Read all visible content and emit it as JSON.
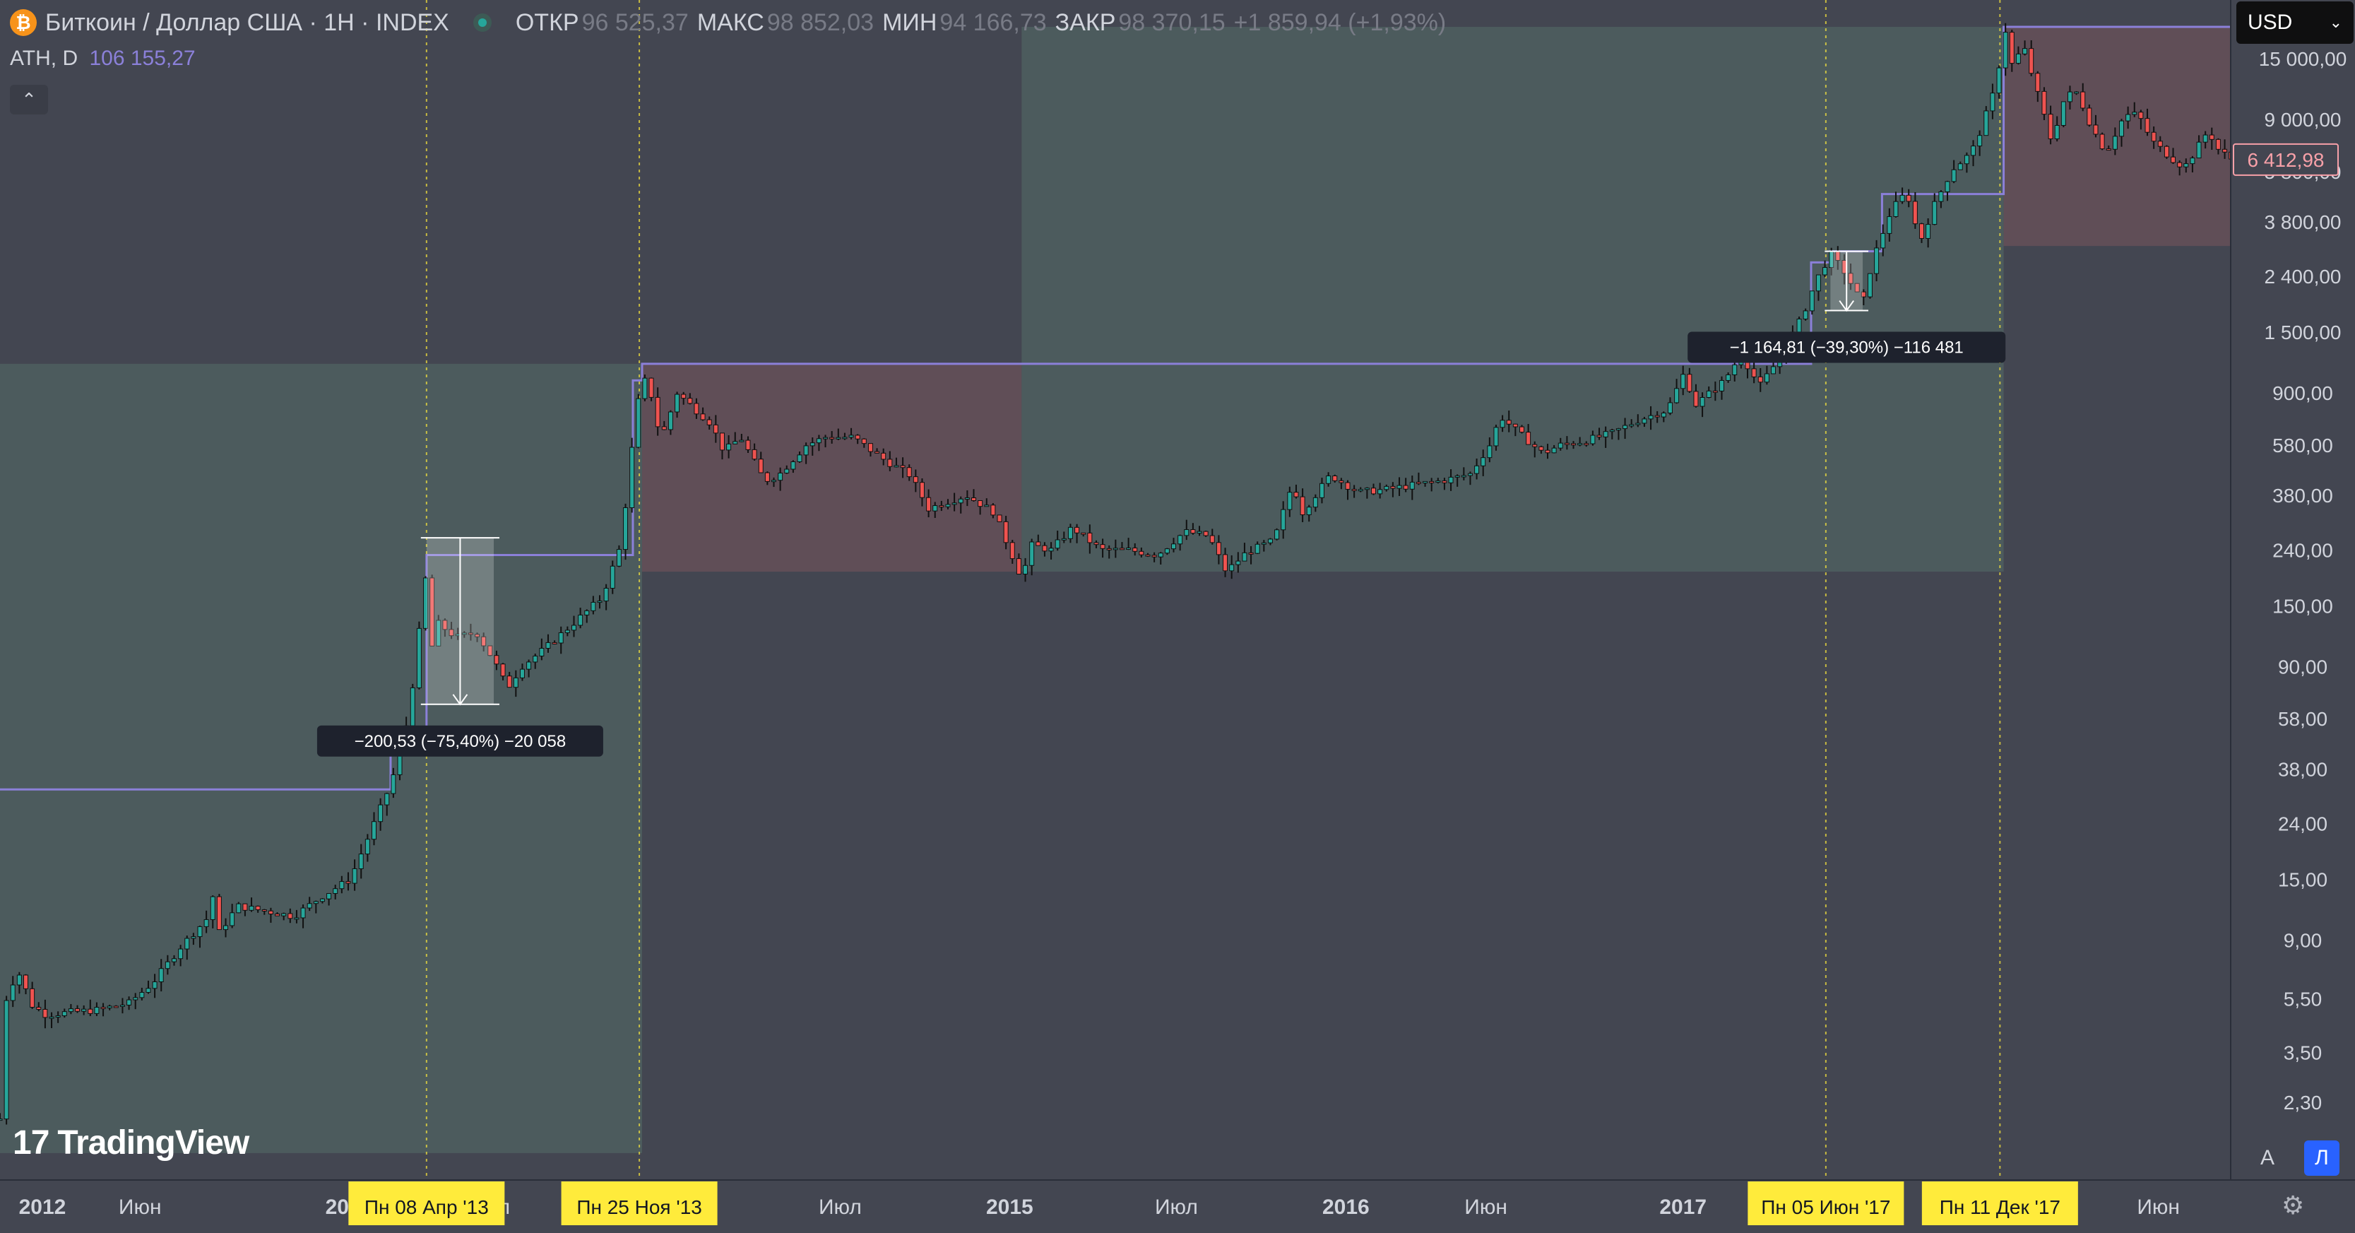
{
  "header": {
    "coin_icon": "bitcoin-icon",
    "title": "Биткоин / Доллар США · 1Н · INDEX",
    "open_label": "ОТКР",
    "open": "96 525,37",
    "high_label": "МАКС",
    "high": "98 852,03",
    "low_label": "МИН",
    "low": "94 166,73",
    "close_label": "ЗАКР",
    "close": "98 370,15",
    "change": "+1 859,94 (+1,93%)"
  },
  "indicator": {
    "label": "ATH, D",
    "value": "106 155,27"
  },
  "currency_selector": {
    "value": "USD"
  },
  "branding": {
    "text": "TradingView"
  },
  "scale_controls": {
    "auto_label": "A",
    "log_label": "Л"
  },
  "colors": {
    "background": "#434651",
    "up": "#26a69a",
    "down": "#ef5350",
    "ath_line": "#8b80d9",
    "highlight": "#ffeb3b",
    "price_tag": "#f7a0a8"
  },
  "chart_data": {
    "type": "candlestick",
    "scale": "log",
    "x_ticks": [
      {
        "date": "2012-01-01",
        "label": "2012"
      },
      {
        "date": "2012-06-01",
        "label": "Июн"
      },
      {
        "date": "2013-01-01",
        "label": "20"
      },
      {
        "date": "2013-07-01",
        "label": "л"
      },
      {
        "date": "2014-07-01",
        "label": "Июл"
      },
      {
        "date": "2015-01-01",
        "label": "2015"
      },
      {
        "date": "2015-07-01",
        "label": "Июл"
      },
      {
        "date": "2016-01-01",
        "label": "2016"
      },
      {
        "date": "2016-06-01",
        "label": "Июн"
      },
      {
        "date": "2017-01-01",
        "label": "2017"
      },
      {
        "date": "2018-06-01",
        "label": "Июн"
      }
    ],
    "y_ticks": [
      {
        "value": 15000,
        "label": "15 000,00"
      },
      {
        "value": 9000,
        "label": "9 000,00"
      },
      {
        "value": 5800,
        "label": "5 800,00"
      },
      {
        "value": 3800,
        "label": "3 800,00"
      },
      {
        "value": 2400,
        "label": "2 400,00"
      },
      {
        "value": 1500,
        "label": "1 500,00"
      },
      {
        "value": 900,
        "label": "900,00"
      },
      {
        "value": 580,
        "label": "580,00"
      },
      {
        "value": 380,
        "label": "380,00"
      },
      {
        "value": 240,
        "label": "240,00"
      },
      {
        "value": 150,
        "label": "150,00"
      },
      {
        "value": 90,
        "label": "90,00"
      },
      {
        "value": 58,
        "label": "58,00"
      },
      {
        "value": 38,
        "label": "38,00"
      },
      {
        "value": 24,
        "label": "24,00"
      },
      {
        "value": 15,
        "label": "15,00"
      },
      {
        "value": 9,
        "label": "9,00"
      },
      {
        "value": 5.5,
        "label": "5,50"
      },
      {
        "value": 3.5,
        "label": "3,50"
      },
      {
        "value": 2.3,
        "label": "2,30"
      }
    ],
    "current_price": {
      "value": 6412.98,
      "label": "6 412,98"
    },
    "highlight_dates": [
      {
        "date": "2013-04-08",
        "label": "Пн 08 Апр '13"
      },
      {
        "date": "2013-11-25",
        "label": "Пн 25 Ноя '13"
      },
      {
        "date": "2017-06-05",
        "label": "Пн 05 Июн '17"
      },
      {
        "date": "2017-12-11",
        "label": "Пн 11 Дек '17"
      }
    ],
    "measurements": [
      {
        "label": "−200,53 (−75,40%) −20 058",
        "from": {
          "date": "2013-04-08",
          "value": 266
        },
        "to": {
          "date": "2013-06-20",
          "value": 65.5
        }
      },
      {
        "label": "−1 164,81 (−39,30%) −116 481",
        "from": {
          "date": "2017-06-10",
          "value": 2965
        },
        "to": {
          "date": "2017-07-15",
          "value": 1800
        }
      }
    ],
    "ath_steps": [
      {
        "start": "2012-01-01",
        "end": "2013-02-28",
        "value": 32
      },
      {
        "start": "2013-02-28",
        "end": "2013-04-08",
        "value": 50
      },
      {
        "start": "2013-04-08",
        "end": "2013-11-18",
        "value": 230
      },
      {
        "start": "2013-11-18",
        "end": "2013-11-28",
        "value": 1000
      },
      {
        "start": "2013-11-28",
        "end": "2017-05-20",
        "value": 1150
      },
      {
        "start": "2017-05-20",
        "end": "2017-06-10",
        "value": 2700
      },
      {
        "start": "2017-06-10",
        "end": "2017-08-05",
        "value": 2965
      },
      {
        "start": "2017-08-05",
        "end": "2017-12-15",
        "value": 4800
      },
      {
        "start": "2017-12-15",
        "end": "2018-08-20",
        "value": 19600
      }
    ],
    "zones": [
      {
        "from": "2012-01-01",
        "to": "2013-11-28",
        "low": 1.5,
        "high": 1150,
        "kind": "bull"
      },
      {
        "from": "2013-11-28",
        "to": "2015-01-14",
        "low": 200,
        "high": 1150,
        "kind": "bear"
      },
      {
        "from": "2015-01-14",
        "to": "2017-12-15",
        "low": 200,
        "high": 19600,
        "kind": "bull"
      },
      {
        "from": "2017-12-15",
        "to": "2018-08-20",
        "low": 3100,
        "high": 19600,
        "kind": "bear"
      }
    ],
    "price_path": [
      [
        "2012-01-01",
        2.0
      ],
      [
        "2012-01-08",
        5.5
      ],
      [
        "2012-01-20",
        7.0
      ],
      [
        "2012-02-05",
        5.2
      ],
      [
        "2012-02-20",
        4.8
      ],
      [
        "2012-03-15",
        4.9
      ],
      [
        "2012-04-15",
        5.0
      ],
      [
        "2012-05-20",
        5.3
      ],
      [
        "2012-06-15",
        6.3
      ],
      [
        "2012-07-15",
        8.5
      ],
      [
        "2012-08-15",
        11.0
      ],
      [
        "2012-08-19",
        13.0
      ],
      [
        "2012-08-25",
        9.5
      ],
      [
        "2012-09-15",
        12.0
      ],
      [
        "2012-10-15",
        11.5
      ],
      [
        "2012-11-15",
        11.0
      ],
      [
        "2012-12-15",
        13.0
      ],
      [
        "2013-01-15",
        15.0
      ],
      [
        "2013-02-10",
        24.0
      ],
      [
        "2013-03-01",
        34.0
      ],
      [
        "2013-03-20",
        60.0
      ],
      [
        "2013-04-08",
        200.0
      ],
      [
        "2013-04-12",
        100.0
      ],
      [
        "2013-04-20",
        130.0
      ],
      [
        "2013-05-10",
        115.0
      ],
      [
        "2013-06-01",
        120.0
      ],
      [
        "2013-06-20",
        95.0
      ],
      [
        "2013-07-05",
        75.0
      ],
      [
        "2013-07-20",
        90.0
      ],
      [
        "2013-08-15",
        105.0
      ],
      [
        "2013-09-15",
        130.0
      ],
      [
        "2013-10-15",
        160.0
      ],
      [
        "2013-11-05",
        250.0
      ],
      [
        "2013-11-18",
        600.0
      ],
      [
        "2013-11-28",
        1050.0
      ],
      [
        "2013-12-10",
        850.0
      ],
      [
        "2013-12-18",
        600.0
      ],
      [
        "2014-01-05",
        900.0
      ],
      [
        "2014-02-10",
        700.0
      ],
      [
        "2014-02-25",
        550.0
      ],
      [
        "2014-03-15",
        620.0
      ],
      [
        "2014-04-10",
        430.0
      ],
      [
        "2014-04-25",
        450.0
      ],
      [
        "2014-05-25",
        580.0
      ],
      [
        "2014-06-15",
        620.0
      ],
      [
        "2014-07-15",
        620.0
      ],
      [
        "2014-08-15",
        520.0
      ],
      [
        "2014-09-15",
        450.0
      ],
      [
        "2014-10-05",
        340.0
      ],
      [
        "2014-10-25",
        360.0
      ],
      [
        "2014-11-15",
        380.0
      ],
      [
        "2014-12-15",
        330.0
      ],
      [
        "2015-01-14",
        190.0
      ],
      [
        "2015-01-25",
        250.0
      ],
      [
        "2015-02-15",
        240.0
      ],
      [
        "2015-03-10",
        290.0
      ],
      [
        "2015-04-10",
        240.0
      ],
      [
        "2015-05-10",
        240.0
      ],
      [
        "2015-06-10",
        230.0
      ],
      [
        "2015-07-10",
        280.0
      ],
      [
        "2015-08-05",
        270.0
      ],
      [
        "2015-08-24",
        200.0
      ],
      [
        "2015-09-15",
        235.0
      ],
      [
        "2015-10-15",
        260.0
      ],
      [
        "2015-11-04",
        420.0
      ],
      [
        "2015-11-15",
        330.0
      ],
      [
        "2015-12-15",
        450.0
      ],
      [
        "2016-01-15",
        390.0
      ],
      [
        "2016-02-15",
        400.0
      ],
      [
        "2016-03-15",
        415.0
      ],
      [
        "2016-04-15",
        430.0
      ],
      [
        "2016-05-15",
        455.0
      ],
      [
        "2016-06-05",
        580.0
      ],
      [
        "2016-06-17",
        740.0
      ],
      [
        "2016-07-05",
        650.0
      ],
      [
        "2016-08-02",
        540.0
      ],
      [
        "2016-08-20",
        580.0
      ],
      [
        "2016-09-15",
        600.0
      ],
      [
        "2016-10-15",
        640.0
      ],
      [
        "2016-11-15",
        720.0
      ],
      [
        "2016-12-15",
        780.0
      ],
      [
        "2017-01-04",
        1100.0
      ],
      [
        "2017-01-12",
        800.0
      ],
      [
        "2017-02-15",
        1000.0
      ],
      [
        "2017-03-05",
        1250.0
      ],
      [
        "2017-03-25",
        950.0
      ],
      [
        "2017-04-15",
        1200.0
      ],
      [
        "2017-05-10",
        1700.0
      ],
      [
        "2017-05-25",
        2300.0
      ],
      [
        "2017-06-10",
        2900.0
      ],
      [
        "2017-06-25",
        2500.0
      ],
      [
        "2017-07-15",
        1900.0
      ],
      [
        "2017-07-25",
        2700.0
      ],
      [
        "2017-08-15",
        4200.0
      ],
      [
        "2017-09-01",
        4900.0
      ],
      [
        "2017-09-15",
        3200.0
      ],
      [
        "2017-10-01",
        4400.0
      ],
      [
        "2017-10-20",
        5900.0
      ],
      [
        "2017-11-10",
        6800.0
      ],
      [
        "2017-11-20",
        8200.0
      ],
      [
        "2017-12-05",
        11500.0
      ],
      [
        "2017-12-17",
        19000.0
      ],
      [
        "2017-12-22",
        14000.0
      ],
      [
        "2018-01-06",
        16500.0
      ],
      [
        "2018-01-15",
        13000.0
      ],
      [
        "2018-02-05",
        7500.0
      ],
      [
        "2018-02-20",
        11000.0
      ],
      [
        "2018-03-05",
        11300.0
      ],
      [
        "2018-03-20",
        8500.0
      ],
      [
        "2018-04-05",
        6800.0
      ],
      [
        "2018-04-25",
        9300.0
      ],
      [
        "2018-05-10",
        9400.0
      ],
      [
        "2018-05-25",
        7500.0
      ],
      [
        "2018-06-15",
        6500.0
      ],
      [
        "2018-06-29",
        6000.0
      ],
      [
        "2018-07-10",
        6800.0
      ],
      [
        "2018-07-25",
        8200.0
      ],
      [
        "2018-08-05",
        7000.0
      ],
      [
        "2018-08-20",
        6413.0
      ]
    ]
  }
}
